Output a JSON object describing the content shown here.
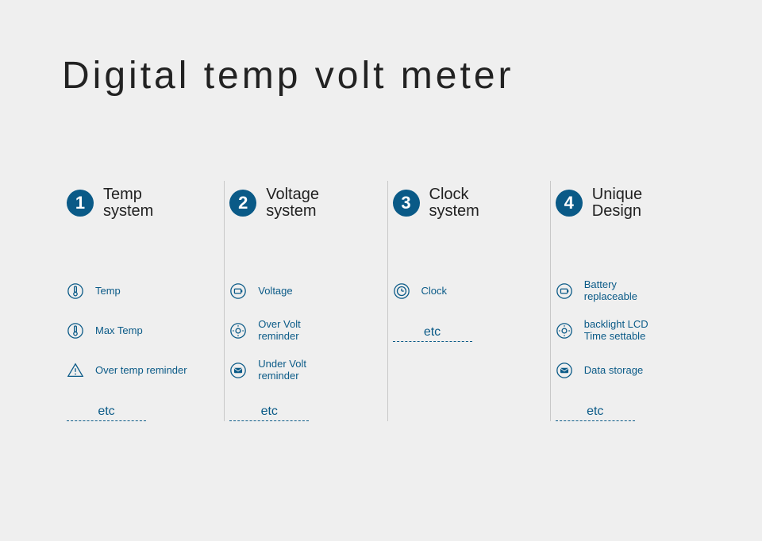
{
  "title": "Digital temp volt meter",
  "accent_color": "#0a5a87",
  "background_color": "#efefef",
  "etc_label": "etc",
  "columns": [
    {
      "num": "1",
      "title": "Temp\nsystem",
      "features": [
        {
          "icon": "thermometer",
          "label": "Temp"
        },
        {
          "icon": "thermometer",
          "label": "Max Temp"
        },
        {
          "icon": "warning",
          "label": "Over temp reminder"
        }
      ]
    },
    {
      "num": "2",
      "title": "Voltage\nsystem",
      "features": [
        {
          "icon": "battery",
          "label": "Voltage"
        },
        {
          "icon": "bulb",
          "label": "Over Volt\nreminder"
        },
        {
          "icon": "envelope",
          "label": "Under Volt\nreminder"
        }
      ]
    },
    {
      "num": "3",
      "title": "Clock\nsystem",
      "features": [
        {
          "icon": "clock",
          "label": "Clock"
        }
      ]
    },
    {
      "num": "4",
      "title": "Unique\nDesign",
      "features": [
        {
          "icon": "battery",
          "label": "Battery\nreplaceable"
        },
        {
          "icon": "bulb",
          "label": "backlight LCD\nTime settable"
        },
        {
          "icon": "envelope",
          "label": "Data storage"
        }
      ]
    }
  ]
}
